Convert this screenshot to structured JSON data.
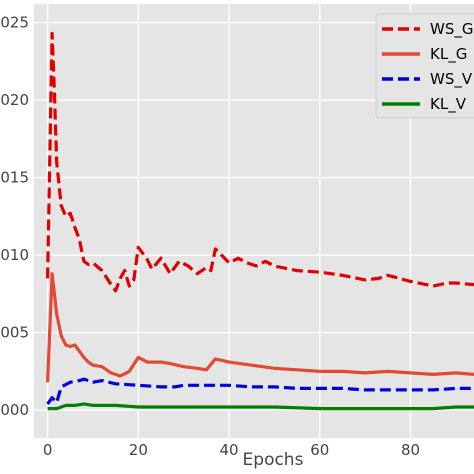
{
  "chart_data": {
    "type": "line",
    "title": "",
    "xlabel": "Epochs",
    "ylabel": "",
    "xlim": [
      -3,
      94
    ],
    "ylim": [
      -0.0018,
      0.0262
    ],
    "grid": true,
    "legend_position": "top-right",
    "x_ticks": [
      0,
      20,
      40,
      60,
      80
    ],
    "x_tick_labels": [
      "0",
      "20",
      "40",
      "60",
      "80"
    ],
    "y_ticks": [
      0.0,
      0.005,
      0.01,
      0.015,
      0.02,
      0.025
    ],
    "y_tick_labels": [
      "000",
      "005",
      "010",
      "015",
      "020",
      "025"
    ],
    "series": [
      {
        "name": "WS_G",
        "color": "#e00000",
        "style": "dashed",
        "x": [
          0,
          1,
          1.5,
          2,
          3,
          4,
          5,
          6,
          7,
          8,
          9,
          10,
          12,
          14,
          15,
          16,
          17,
          18,
          19,
          20,
          22,
          23,
          25,
          27,
          29,
          31,
          33,
          35,
          36,
          37,
          38,
          40,
          42,
          44,
          46,
          48,
          50,
          55,
          60,
          65,
          70,
          73,
          75,
          80,
          85,
          88,
          90,
          94
        ],
        "y": [
          0.0085,
          0.0243,
          0.0205,
          0.016,
          0.0132,
          0.0125,
          0.0127,
          0.0118,
          0.011,
          0.0096,
          0.0094,
          0.0095,
          0.009,
          0.0081,
          0.0077,
          0.0085,
          0.009,
          0.008,
          0.0084,
          0.0105,
          0.0097,
          0.0091,
          0.0098,
          0.0088,
          0.0096,
          0.0093,
          0.0088,
          0.0092,
          0.009,
          0.0104,
          0.0101,
          0.0095,
          0.0098,
          0.0095,
          0.0093,
          0.0096,
          0.0093,
          0.009,
          0.0089,
          0.0087,
          0.0084,
          0.0085,
          0.0087,
          0.0083,
          0.008,
          0.0082,
          0.0082,
          0.0081
        ]
      },
      {
        "name": "KL_G",
        "color": "#e24a33",
        "style": "solid",
        "x": [
          0,
          1,
          2,
          3,
          4,
          5,
          6,
          7,
          8,
          9,
          10,
          12,
          14,
          16,
          18,
          20,
          22,
          25,
          27,
          30,
          33,
          35,
          37,
          40,
          45,
          50,
          55,
          60,
          65,
          70,
          75,
          80,
          85,
          90,
          94
        ],
        "y": [
          0.0018,
          0.0088,
          0.0062,
          0.0048,
          0.0042,
          0.0041,
          0.0042,
          0.0038,
          0.0034,
          0.0031,
          0.0029,
          0.0028,
          0.0024,
          0.0022,
          0.0025,
          0.0034,
          0.0031,
          0.0031,
          0.003,
          0.0028,
          0.0027,
          0.0026,
          0.0033,
          0.0031,
          0.0029,
          0.0027,
          0.0026,
          0.0025,
          0.0025,
          0.0024,
          0.0025,
          0.0024,
          0.0023,
          0.0024,
          0.0023
        ]
      },
      {
        "name": "WS_V",
        "color": "#0000dd",
        "style": "dashed",
        "x": [
          0,
          1,
          2,
          3,
          5,
          7,
          8,
          10,
          12,
          15,
          20,
          25,
          28,
          30,
          35,
          40,
          45,
          50,
          55,
          60,
          65,
          70,
          75,
          80,
          85,
          90,
          94
        ],
        "y": [
          0.0004,
          0.0008,
          0.0005,
          0.0015,
          0.0018,
          0.0019,
          0.002,
          0.0018,
          0.0019,
          0.0017,
          0.0016,
          0.0015,
          0.0015,
          0.0016,
          0.0016,
          0.0016,
          0.0015,
          0.0015,
          0.0014,
          0.0014,
          0.0014,
          0.0013,
          0.0013,
          0.0013,
          0.0013,
          0.0014,
          0.0014
        ]
      },
      {
        "name": "KL_V",
        "color": "#008000",
        "style": "solid",
        "x": [
          0,
          2,
          4,
          6,
          8,
          10,
          15,
          20,
          30,
          40,
          50,
          60,
          70,
          80,
          85,
          90,
          94
        ],
        "y": [
          0.0001,
          0.0001,
          0.0003,
          0.0003,
          0.0004,
          0.0003,
          0.0003,
          0.0002,
          0.0002,
          0.0002,
          0.0002,
          0.0001,
          0.0001,
          0.0001,
          0.0001,
          0.0002,
          0.0002
        ]
      }
    ]
  }
}
